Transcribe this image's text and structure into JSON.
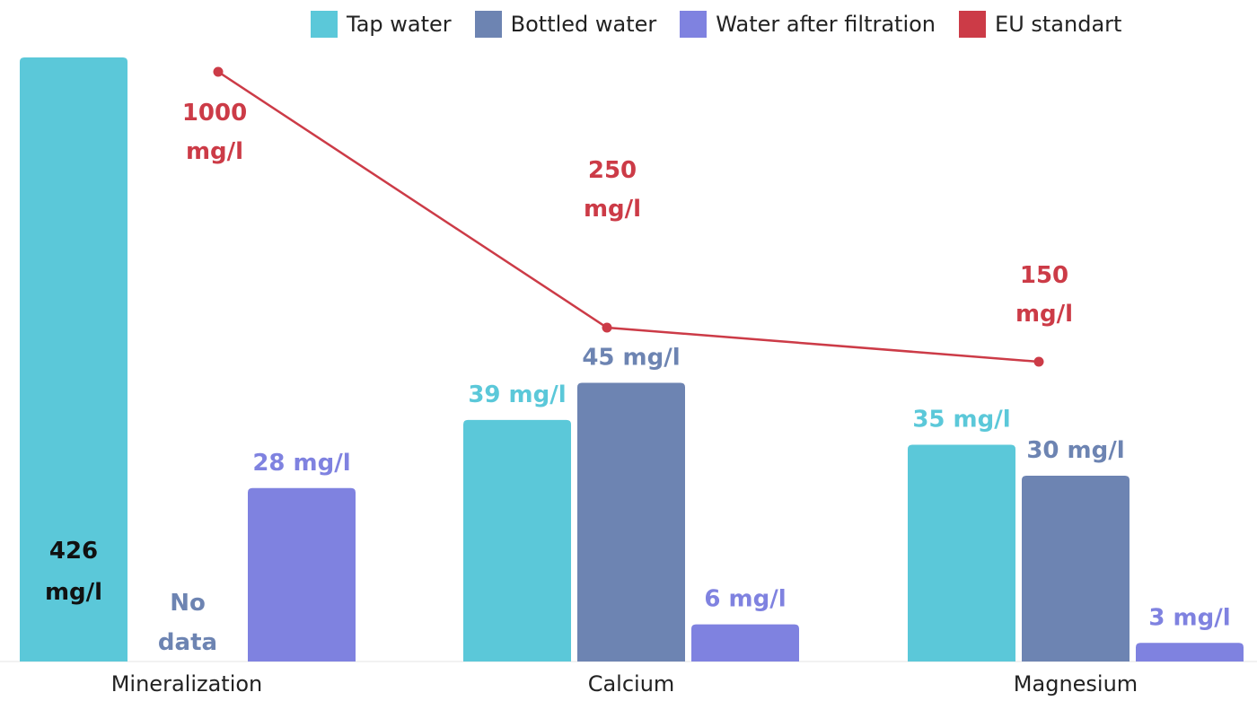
{
  "legend": [
    {
      "name": "Tap water",
      "color": "#5bc8d9"
    },
    {
      "name": "Bottled water",
      "color": "#6d84b2"
    },
    {
      "name": "Water after filtration",
      "color": "#7f82e0"
    },
    {
      "name": "EU standart",
      "color": "#cc3b47"
    }
  ],
  "chart_data": {
    "type": "bar",
    "categories": [
      "Mineralization",
      "Calcium",
      "Magnesium"
    ],
    "series": [
      {
        "name": "Tap water",
        "color": "#5bc8d9",
        "values": [
          426,
          39,
          35
        ],
        "labels": [
          "426 mg/l",
          "39 mg/l",
          "35 mg/l"
        ]
      },
      {
        "name": "Bottled water",
        "color": "#6d84b2",
        "values": [
          null,
          45,
          30
        ],
        "labels": [
          "No data",
          "45 mg/l",
          "30 mg/l"
        ]
      },
      {
        "name": "Water after filtration",
        "color": "#7f82e0",
        "values": [
          28,
          6,
          3
        ],
        "labels": [
          "28 mg/l",
          "6 mg/l",
          "3 mg/l"
        ]
      }
    ],
    "line_series": {
      "name": "EU standart",
      "color": "#cc3b47",
      "values": [
        1000,
        250,
        150
      ],
      "labels": [
        "1000 mg/l",
        "250 mg/l",
        "150 mg/l"
      ]
    },
    "grid": false,
    "legend_position": "top"
  }
}
